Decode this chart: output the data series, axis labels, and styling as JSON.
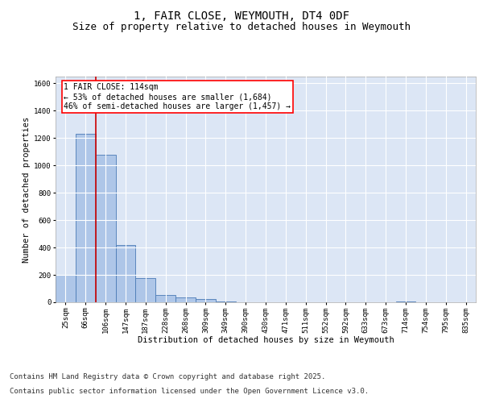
{
  "title": "1, FAIR CLOSE, WEYMOUTH, DT4 0DF",
  "subtitle": "Size of property relative to detached houses in Weymouth",
  "xlabel": "Distribution of detached houses by size in Weymouth",
  "ylabel": "Number of detached properties",
  "categories": [
    "25sqm",
    "66sqm",
    "106sqm",
    "147sqm",
    "187sqm",
    "228sqm",
    "268sqm",
    "309sqm",
    "349sqm",
    "390sqm",
    "430sqm",
    "471sqm",
    "511sqm",
    "552sqm",
    "592sqm",
    "633sqm",
    "673sqm",
    "714sqm",
    "754sqm",
    "795sqm",
    "835sqm"
  ],
  "values": [
    200,
    1230,
    1080,
    420,
    175,
    55,
    35,
    25,
    5,
    0,
    0,
    0,
    0,
    0,
    0,
    0,
    0,
    5,
    0,
    0,
    0
  ],
  "bar_color": "#aec6e8",
  "bar_edge_color": "#4a7ab5",
  "background_color": "#dce6f5",
  "grid_color": "#ffffff",
  "annotation_line1": "1 FAIR CLOSE: 114sqm",
  "annotation_line2": "← 53% of detached houses are smaller (1,684)",
  "annotation_line3": "46% of semi-detached houses are larger (1,457) →",
  "vline_x_index": 2.0,
  "vline_color": "#cc0000",
  "ylim": [
    0,
    1650
  ],
  "yticks": [
    0,
    200,
    400,
    600,
    800,
    1000,
    1200,
    1400,
    1600
  ],
  "footer_line1": "Contains HM Land Registry data © Crown copyright and database right 2025.",
  "footer_line2": "Contains public sector information licensed under the Open Government Licence v3.0.",
  "title_fontsize": 10,
  "subtitle_fontsize": 9,
  "label_fontsize": 7.5,
  "tick_fontsize": 6.5,
  "footer_fontsize": 6.5,
  "annot_fontsize": 7
}
